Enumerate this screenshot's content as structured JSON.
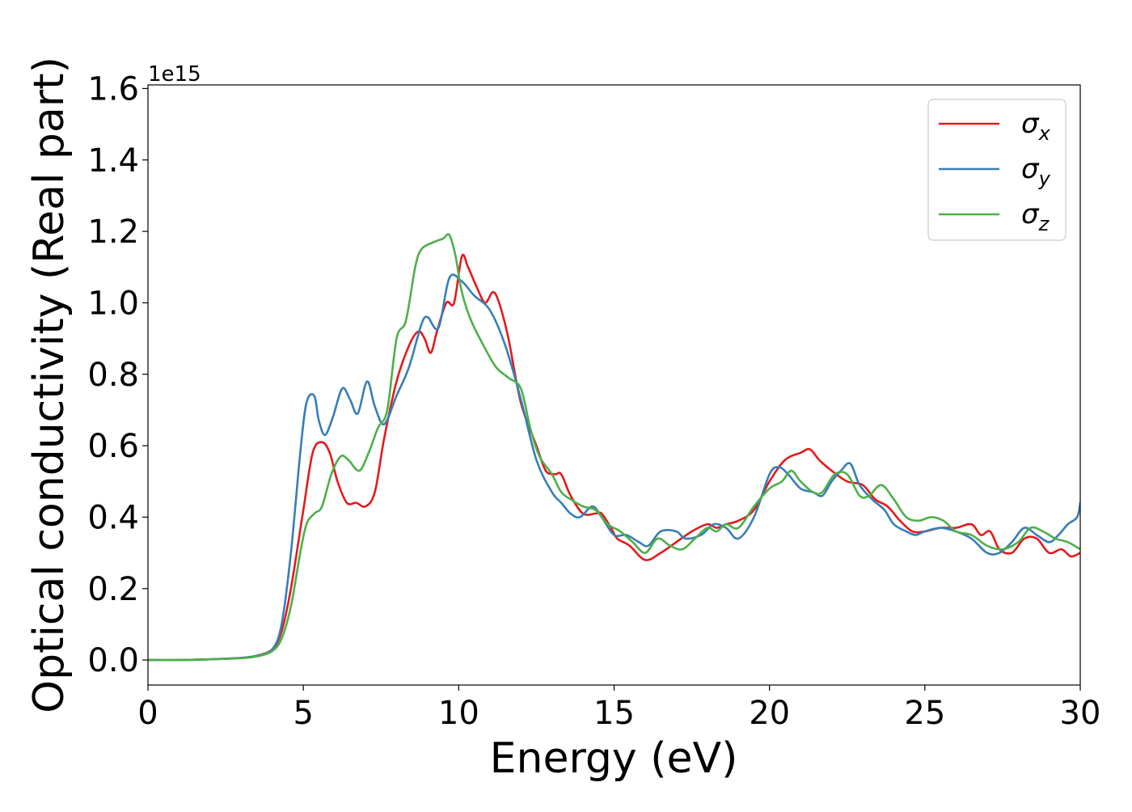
{
  "chart_data": {
    "type": "line",
    "title": "",
    "xlabel": "Energy (eV)",
    "ylabel": "Optical conductivity (Real part)",
    "offset_text": "1e15",
    "xlim": [
      0,
      30
    ],
    "ylim": [
      -0.07,
      1.61
    ],
    "x_ticks": [
      0,
      5,
      10,
      15,
      20,
      25,
      30
    ],
    "y_ticks": [
      0.0,
      0.2,
      0.4,
      0.6,
      0.8,
      1.0,
      1.2,
      1.4,
      1.6
    ],
    "y_tick_labels": [
      "0.0",
      "0.2",
      "0.4",
      "0.6",
      "0.8",
      "1.0",
      "1.2",
      "1.4",
      "1.6"
    ],
    "grid": false,
    "legend_position": "top-right",
    "series": [
      {
        "name": "σ",
        "subscript": "x",
        "color": "#e41a1c",
        "points": [
          [
            0,
            0
          ],
          [
            1,
            0
          ],
          [
            2,
            0.002
          ],
          [
            3,
            0.006
          ],
          [
            3.5,
            0.012
          ],
          [
            4,
            0.03
          ],
          [
            4.3,
            0.08
          ],
          [
            4.6,
            0.2
          ],
          [
            5,
            0.42
          ],
          [
            5.3,
            0.58
          ],
          [
            5.6,
            0.61
          ],
          [
            5.85,
            0.58
          ],
          [
            6.1,
            0.5
          ],
          [
            6.4,
            0.44
          ],
          [
            6.7,
            0.44
          ],
          [
            7,
            0.43
          ],
          [
            7.3,
            0.47
          ],
          [
            7.6,
            0.62
          ],
          [
            8,
            0.78
          ],
          [
            8.4,
            0.88
          ],
          [
            8.7,
            0.92
          ],
          [
            8.9,
            0.9
          ],
          [
            9.1,
            0.86
          ],
          [
            9.3,
            0.92
          ],
          [
            9.6,
            1.0
          ],
          [
            9.85,
            1.0
          ],
          [
            10.1,
            1.13
          ],
          [
            10.3,
            1.1
          ],
          [
            10.6,
            1.04
          ],
          [
            10.85,
            1.0
          ],
          [
            11.1,
            1.03
          ],
          [
            11.3,
            1.0
          ],
          [
            11.6,
            0.9
          ],
          [
            12,
            0.72
          ],
          [
            12.5,
            0.6
          ],
          [
            12.8,
            0.53
          ],
          [
            13.1,
            0.52
          ],
          [
            13.3,
            0.52
          ],
          [
            13.6,
            0.46
          ],
          [
            14,
            0.41
          ],
          [
            14.4,
            0.41
          ],
          [
            14.6,
            0.41
          ],
          [
            14.9,
            0.37
          ],
          [
            15.1,
            0.34
          ],
          [
            15.5,
            0.32
          ],
          [
            16,
            0.28
          ],
          [
            16.5,
            0.3
          ],
          [
            17,
            0.33
          ],
          [
            17.5,
            0.36
          ],
          [
            18,
            0.38
          ],
          [
            18.3,
            0.37
          ],
          [
            18.6,
            0.38
          ],
          [
            19,
            0.39
          ],
          [
            19.5,
            0.42
          ],
          [
            20,
            0.5
          ],
          [
            20.5,
            0.56
          ],
          [
            21,
            0.58
          ],
          [
            21.3,
            0.59
          ],
          [
            21.6,
            0.56
          ],
          [
            22,
            0.53
          ],
          [
            22.5,
            0.5
          ],
          [
            23,
            0.49
          ],
          [
            23.4,
            0.45
          ],
          [
            23.8,
            0.43
          ],
          [
            24.2,
            0.39
          ],
          [
            24.6,
            0.36
          ],
          [
            25,
            0.36
          ],
          [
            25.5,
            0.37
          ],
          [
            26,
            0.37
          ],
          [
            26.5,
            0.38
          ],
          [
            26.8,
            0.35
          ],
          [
            27.1,
            0.36
          ],
          [
            27.4,
            0.31
          ],
          [
            27.8,
            0.3
          ],
          [
            28.2,
            0.34
          ],
          [
            28.6,
            0.34
          ],
          [
            29,
            0.3
          ],
          [
            29.4,
            0.31
          ],
          [
            29.7,
            0.29
          ],
          [
            30,
            0.3
          ]
        ]
      },
      {
        "name": "σ",
        "subscript": "y",
        "color": "#377eb8",
        "points": [
          [
            0,
            0
          ],
          [
            1,
            0
          ],
          [
            2,
            0.002
          ],
          [
            3,
            0.006
          ],
          [
            3.5,
            0.012
          ],
          [
            4,
            0.03
          ],
          [
            4.3,
            0.1
          ],
          [
            4.6,
            0.3
          ],
          [
            4.9,
            0.58
          ],
          [
            5.1,
            0.72
          ],
          [
            5.35,
            0.74
          ],
          [
            5.5,
            0.67
          ],
          [
            5.7,
            0.63
          ],
          [
            5.95,
            0.68
          ],
          [
            6.25,
            0.76
          ],
          [
            6.5,
            0.73
          ],
          [
            6.75,
            0.69
          ],
          [
            7.05,
            0.78
          ],
          [
            7.3,
            0.71
          ],
          [
            7.6,
            0.66
          ],
          [
            8,
            0.74
          ],
          [
            8.4,
            0.82
          ],
          [
            8.8,
            0.94
          ],
          [
            9,
            0.96
          ],
          [
            9.35,
            0.93
          ],
          [
            9.7,
            1.07
          ],
          [
            10.1,
            1.06
          ],
          [
            10.5,
            1.02
          ],
          [
            11,
            0.98
          ],
          [
            11.5,
            0.88
          ],
          [
            12,
            0.73
          ],
          [
            12.5,
            0.56
          ],
          [
            13,
            0.47
          ],
          [
            13.3,
            0.44
          ],
          [
            13.6,
            0.41
          ],
          [
            13.9,
            0.4
          ],
          [
            14.3,
            0.43
          ],
          [
            14.6,
            0.4
          ],
          [
            15,
            0.35
          ],
          [
            15.4,
            0.35
          ],
          [
            15.8,
            0.33
          ],
          [
            16.1,
            0.32
          ],
          [
            16.5,
            0.36
          ],
          [
            17,
            0.36
          ],
          [
            17.3,
            0.34
          ],
          [
            17.8,
            0.35
          ],
          [
            18.2,
            0.38
          ],
          [
            18.6,
            0.37
          ],
          [
            19,
            0.34
          ],
          [
            19.5,
            0.4
          ],
          [
            20,
            0.52
          ],
          [
            20.3,
            0.54
          ],
          [
            20.6,
            0.52
          ],
          [
            21,
            0.48
          ],
          [
            21.4,
            0.47
          ],
          [
            21.7,
            0.46
          ],
          [
            22,
            0.5
          ],
          [
            22.3,
            0.53
          ],
          [
            22.6,
            0.55
          ],
          [
            22.9,
            0.49
          ],
          [
            23.3,
            0.45
          ],
          [
            23.7,
            0.42
          ],
          [
            24,
            0.38
          ],
          [
            24.4,
            0.36
          ],
          [
            24.7,
            0.35
          ],
          [
            25,
            0.36
          ],
          [
            25.5,
            0.37
          ],
          [
            26,
            0.36
          ],
          [
            26.5,
            0.34
          ],
          [
            27,
            0.3
          ],
          [
            27.4,
            0.3
          ],
          [
            27.8,
            0.33
          ],
          [
            28.2,
            0.37
          ],
          [
            28.6,
            0.35
          ],
          [
            29,
            0.33
          ],
          [
            29.3,
            0.35
          ],
          [
            29.6,
            0.38
          ],
          [
            29.9,
            0.4
          ],
          [
            30,
            0.44
          ]
        ]
      },
      {
        "name": "σ",
        "subscript": "z",
        "color": "#4daf4a",
        "points": [
          [
            0,
            0
          ],
          [
            1,
            0
          ],
          [
            2,
            0.002
          ],
          [
            3,
            0.005
          ],
          [
            3.5,
            0.01
          ],
          [
            4,
            0.025
          ],
          [
            4.3,
            0.06
          ],
          [
            4.6,
            0.15
          ],
          [
            4.9,
            0.3
          ],
          [
            5.1,
            0.38
          ],
          [
            5.35,
            0.41
          ],
          [
            5.6,
            0.43
          ],
          [
            5.9,
            0.52
          ],
          [
            6.2,
            0.57
          ],
          [
            6.45,
            0.56
          ],
          [
            6.8,
            0.53
          ],
          [
            7.1,
            0.58
          ],
          [
            7.4,
            0.65
          ],
          [
            7.7,
            0.7
          ],
          [
            8,
            0.9
          ],
          [
            8.3,
            0.95
          ],
          [
            8.6,
            1.1
          ],
          [
            8.8,
            1.15
          ],
          [
            9.2,
            1.17
          ],
          [
            9.5,
            1.18
          ],
          [
            9.7,
            1.19
          ],
          [
            9.9,
            1.13
          ],
          [
            10.1,
            1.03
          ],
          [
            10.4,
            0.95
          ],
          [
            10.8,
            0.88
          ],
          [
            11.2,
            0.82
          ],
          [
            11.6,
            0.79
          ],
          [
            12,
            0.76
          ],
          [
            12.3,
            0.65
          ],
          [
            12.6,
            0.57
          ],
          [
            13,
            0.52
          ],
          [
            13.3,
            0.47
          ],
          [
            13.6,
            0.45
          ],
          [
            14,
            0.43
          ],
          [
            14.4,
            0.42
          ],
          [
            14.8,
            0.38
          ],
          [
            15.2,
            0.36
          ],
          [
            15.6,
            0.33
          ],
          [
            16,
            0.3
          ],
          [
            16.4,
            0.34
          ],
          [
            16.8,
            0.32
          ],
          [
            17.2,
            0.31
          ],
          [
            17.6,
            0.34
          ],
          [
            18,
            0.37
          ],
          [
            18.3,
            0.36
          ],
          [
            18.6,
            0.38
          ],
          [
            19,
            0.37
          ],
          [
            19.5,
            0.43
          ],
          [
            20,
            0.48
          ],
          [
            20.4,
            0.5
          ],
          [
            20.7,
            0.53
          ],
          [
            21,
            0.5
          ],
          [
            21.4,
            0.47
          ],
          [
            21.7,
            0.47
          ],
          [
            22.1,
            0.52
          ],
          [
            22.5,
            0.52
          ],
          [
            22.9,
            0.46
          ],
          [
            23.2,
            0.46
          ],
          [
            23.6,
            0.49
          ],
          [
            24,
            0.45
          ],
          [
            24.4,
            0.4
          ],
          [
            24.8,
            0.39
          ],
          [
            25.2,
            0.4
          ],
          [
            25.6,
            0.39
          ],
          [
            26,
            0.36
          ],
          [
            26.5,
            0.35
          ],
          [
            27,
            0.32
          ],
          [
            27.5,
            0.31
          ],
          [
            28,
            0.33
          ],
          [
            28.4,
            0.37
          ],
          [
            28.8,
            0.36
          ],
          [
            29.2,
            0.34
          ],
          [
            29.6,
            0.33
          ],
          [
            30,
            0.31
          ]
        ]
      }
    ]
  }
}
